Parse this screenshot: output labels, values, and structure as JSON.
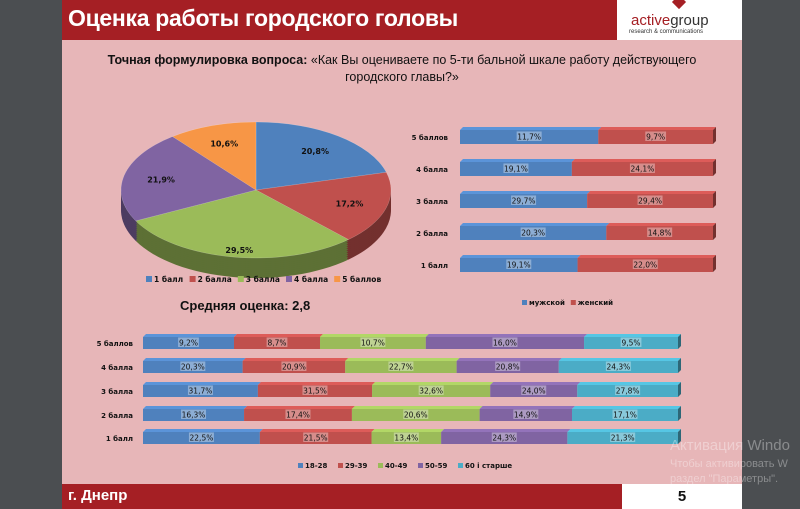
{
  "header": {
    "title": "Оценка работы городского головы",
    "logo_main": "active",
    "logo_main2": "group",
    "logo_sub": "research & communications"
  },
  "question": {
    "label": "Точная формулировка вопроса:",
    "text": "«Как Вы оцениваете по 5-ти бальной шкале работу действующего городского главы?»"
  },
  "average": "Средняя оценка: 2,8",
  "footer": {
    "city": "г. Днепр",
    "page": "5"
  },
  "watermark": [
    "Активация Windo",
    "Чтобы активировать W",
    "раздел \"Параметры\"."
  ],
  "chart_data": [
    {
      "type": "pie",
      "title": "",
      "categories": [
        "1 балл",
        "2 балла",
        "3 балла",
        "4 балла",
        "5 баллов"
      ],
      "values": [
        20.8,
        17.2,
        29.5,
        21.9,
        10.6
      ],
      "labels": [
        "20,8%",
        "17,2%",
        "29,5%",
        "21,9%",
        "10,6%"
      ],
      "colors": [
        "#4f81bd",
        "#c0504d",
        "#9bbb59",
        "#8064a2",
        "#f79646"
      ],
      "legend": "bottom"
    },
    {
      "type": "bar",
      "stacked": "percent",
      "orientation": "horizontal",
      "categories": [
        "5 баллов",
        "4 балла",
        "3 балла",
        "2 балла",
        "1 балл"
      ],
      "series": [
        {
          "name": "мужской",
          "color": "#4f81bd",
          "values": [
            11.7,
            19.1,
            29.7,
            20.3,
            19.1
          ],
          "labels": [
            "11,7%",
            "19,1%",
            "29,7%",
            "20,3%",
            "19,1%"
          ]
        },
        {
          "name": "женский",
          "color": "#c0504d",
          "values": [
            9.7,
            24.1,
            29.4,
            14.8,
            22.0
          ],
          "labels": [
            "9,7%",
            "24,1%",
            "29,4%",
            "14,8%",
            "22,0%"
          ]
        }
      ],
      "legend": "bottom"
    },
    {
      "type": "bar",
      "stacked": "percent",
      "orientation": "horizontal",
      "categories": [
        "5 баллов",
        "4 балла",
        "3 балла",
        "2 балла",
        "1 балл"
      ],
      "series": [
        {
          "name": "18-28",
          "color": "#4f81bd",
          "values": [
            9.2,
            20.3,
            31.7,
            16.3,
            22.5
          ],
          "labels": [
            "9,2%",
            "20,3%",
            "31,7%",
            "16,3%",
            "22,5%"
          ]
        },
        {
          "name": "29-39",
          "color": "#c0504d",
          "values": [
            8.7,
            20.9,
            31.5,
            17.4,
            21.5
          ],
          "labels": [
            "8,7%",
            "20,9%",
            "31,5%",
            "17,4%",
            "21,5%"
          ]
        },
        {
          "name": "40-49",
          "color": "#9bbb59",
          "values": [
            10.7,
            22.7,
            32.6,
            20.6,
            13.4
          ],
          "labels": [
            "10,7%",
            "22,7%",
            "32,6%",
            "20,6%",
            "13,4%"
          ]
        },
        {
          "name": "50-59",
          "color": "#8064a2",
          "values": [
            16.0,
            20.8,
            24.0,
            14.9,
            24.3
          ],
          "labels": [
            "16,0%",
            "20,8%",
            "24,0%",
            "14,9%",
            "24,3%"
          ]
        },
        {
          "name": "60 і старше",
          "color": "#4bacc6",
          "values": [
            9.5,
            24.3,
            27.8,
            17.1,
            21.3
          ],
          "labels": [
            "9,5%",
            "24,3%",
            "27,8%",
            "17,1%",
            "21,3%"
          ]
        }
      ],
      "legend": "bottom"
    }
  ]
}
